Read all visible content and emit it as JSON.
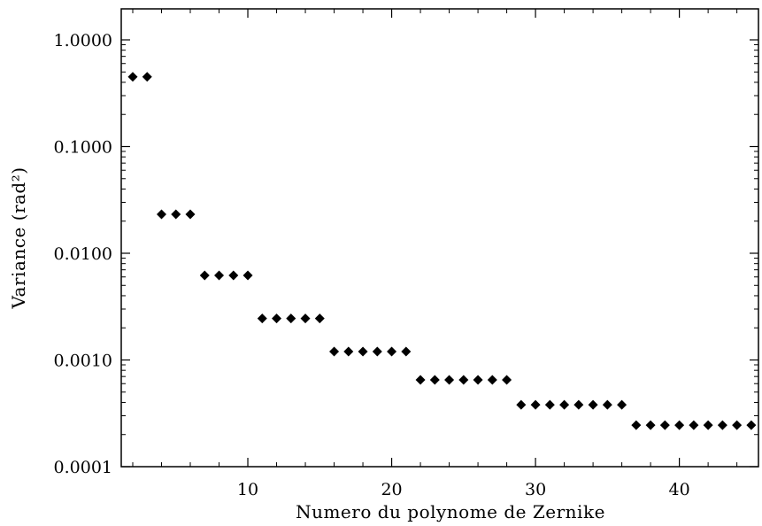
{
  "chart_data": {
    "type": "scatter",
    "title": "",
    "xlabel": "Numero du polynome de Zernike",
    "ylabel": "Variance (rad²)",
    "xlim": [
      1.2,
      45.5
    ],
    "ylim": [
      0.0001,
      10
    ],
    "yscale": "log",
    "grid": false,
    "marker": "diamond",
    "marker_color": "#000000",
    "x_ticks": [
      10,
      20,
      30,
      40
    ],
    "x_tick_labels": [
      "10",
      "20",
      "30",
      "40"
    ],
    "y_ticks": [
      1.0,
      0.1,
      0.01,
      0.001,
      0.0001
    ],
    "y_tick_labels": [
      "1.0000",
      "0.1000",
      "0.0100",
      "0.0010",
      "0.0001"
    ],
    "series": [
      {
        "x": [
          2,
          3,
          4,
          5,
          6,
          7,
          8,
          9,
          10,
          11,
          12,
          13,
          14,
          15,
          16,
          17,
          18,
          19,
          20,
          21,
          22,
          23,
          24,
          25,
          26,
          27,
          28,
          29,
          30,
          31,
          32,
          33,
          34,
          35,
          36,
          37,
          38,
          39,
          40,
          41,
          42,
          43,
          44,
          45
        ],
        "y": [
          0.45,
          0.45,
          0.0232,
          0.0232,
          0.0232,
          0.0062,
          0.0062,
          0.0062,
          0.0062,
          0.00245,
          0.00245,
          0.00245,
          0.00245,
          0.00245,
          0.0012,
          0.0012,
          0.0012,
          0.0012,
          0.0012,
          0.0012,
          0.00065,
          0.00065,
          0.00065,
          0.00065,
          0.00065,
          0.00065,
          0.00065,
          0.00038,
          0.00038,
          0.00038,
          0.00038,
          0.00038,
          0.00038,
          0.00038,
          0.00038,
          0.000245,
          0.000245,
          0.000245,
          0.000245,
          0.000245,
          0.000245,
          0.000245,
          0.000245,
          0.000245
        ]
      }
    ]
  }
}
